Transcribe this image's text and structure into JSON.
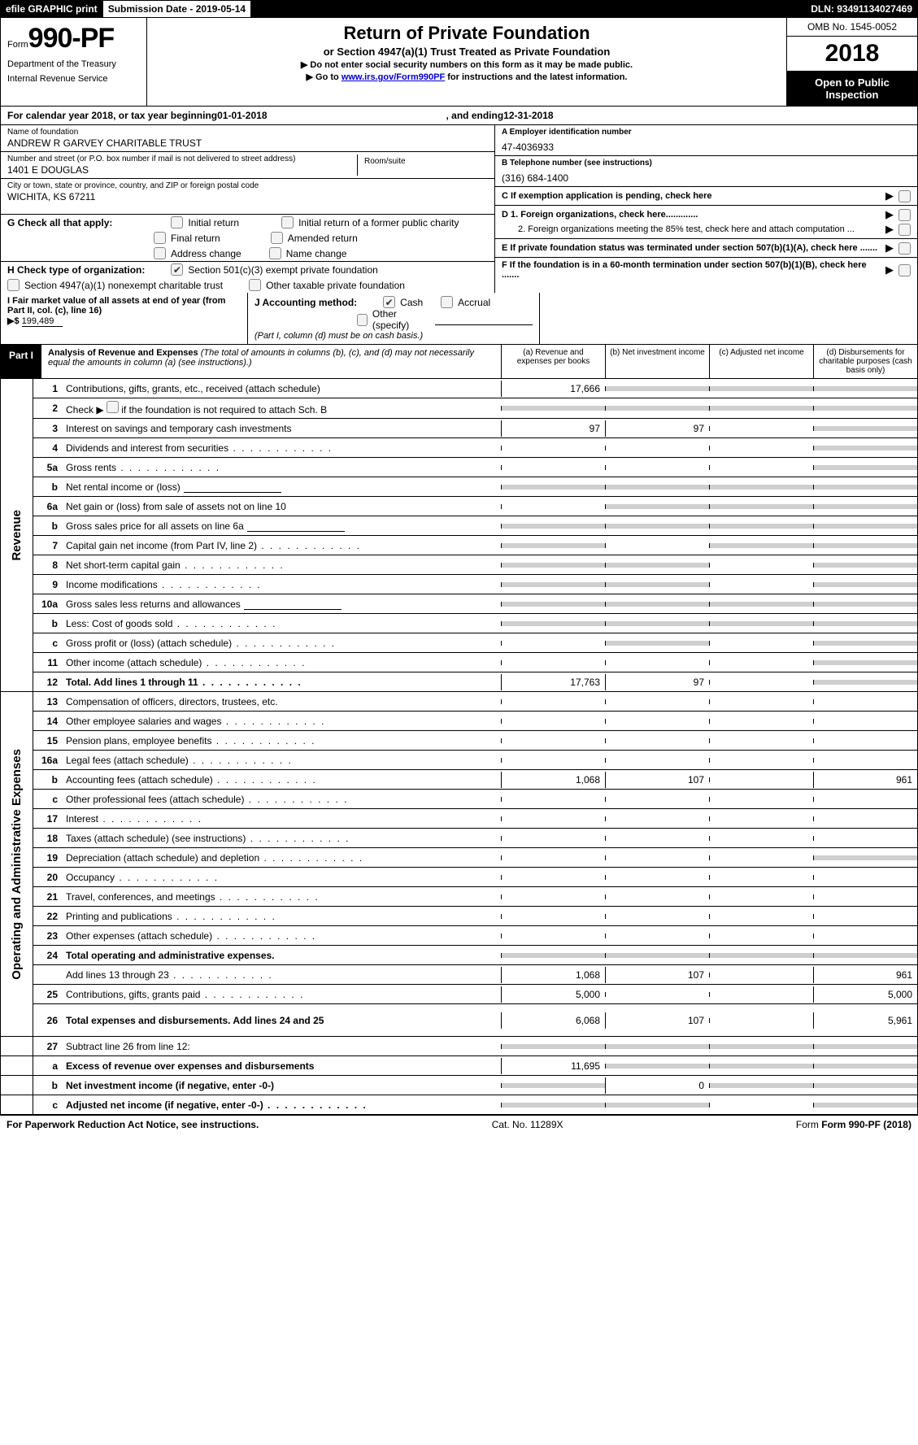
{
  "topbar": {
    "efile": "efile GRAPHIC print",
    "subdate_label": "Submission Date - ",
    "subdate": "2019-05-14",
    "dln_label": "DLN: ",
    "dln": "93491134027469"
  },
  "header": {
    "form_word": "Form",
    "form_no": "990-PF",
    "dept1": "Department of the Treasury",
    "dept2": "Internal Revenue Service",
    "title": "Return of Private Foundation",
    "subtitle": "or Section 4947(a)(1) Trust Treated as Private Foundation",
    "instr1": "▶ Do not enter social security numbers on this form as it may be made public.",
    "instr2_pre": "▶ Go to ",
    "instr2_link": "www.irs.gov/Form990PF",
    "instr2_post": " for instructions and the latest information.",
    "omb": "OMB No. 1545-0052",
    "year": "2018",
    "open1": "Open to Public",
    "open2": "Inspection"
  },
  "calrow": {
    "pre": "For calendar year 2018, or tax year beginning ",
    "begin": "01-01-2018",
    "mid": ", and ending ",
    "end": "12-31-2018"
  },
  "id": {
    "name_lab": "Name of foundation",
    "name": "ANDREW R GARVEY CHARITABLE TRUST",
    "addr_lab": "Number and street (or P.O. box number if mail is not delivered to street address)",
    "addr": "1401 E DOUGLAS",
    "room_lab": "Room/suite",
    "city_lab": "City or town, state or province, country, and ZIP or foreign postal code",
    "city": "WICHITA, KS  67211",
    "ein_lab": "A Employer identification number",
    "ein": "47-4036933",
    "tel_lab": "B Telephone number (see instructions)",
    "tel": "(316) 684-1400",
    "c": "C  If exemption application is pending, check here",
    "d1": "D 1. Foreign organizations, check here.............",
    "d2": "2. Foreign organizations meeting the 85% test, check here and attach computation ...",
    "e": "E   If private foundation status was terminated under section 507(b)(1)(A), check here .......",
    "f": "F   If the foundation is in a 60-month termination under section 507(b)(1)(B), check here ......."
  },
  "g": {
    "lab": "G Check all that apply:",
    "o1": "Initial return",
    "o2": "Initial return of a former public charity",
    "o3": "Final return",
    "o4": "Amended return",
    "o5": "Address change",
    "o6": "Name change"
  },
  "h": {
    "lab": "H Check type of organization:",
    "o1": "Section 501(c)(3) exempt private foundation",
    "o2": "Section 4947(a)(1) nonexempt charitable trust",
    "o3": "Other taxable private foundation"
  },
  "i": {
    "lab": "I Fair market value of all assets at end of year (from Part II, col. (c), line 16)",
    "sym": "▶$",
    "val": "199,489"
  },
  "j": {
    "lab": "J Accounting method:",
    "o1": "Cash",
    "o2": "Accrual",
    "o3": "Other (specify)",
    "note": "(Part I, column (d) must be on cash basis.)"
  },
  "part1": {
    "tag": "Part I",
    "title": "Analysis of Revenue and Expenses",
    "note": " (The total of amounts in columns (b), (c), and (d) may not necessarily equal the amounts in column (a) (see instructions).)",
    "ca": "(a)     Revenue and expenses per books",
    "cb": "(b)     Net investment income",
    "cc": "(c)     Adjusted net income",
    "cd": "(d)     Disbursements for charitable purposes (cash basis only)"
  },
  "sections": {
    "rev": "Revenue",
    "exp": "Operating and Administrative Expenses"
  },
  "rows": {
    "r1": {
      "n": "1",
      "t": "Contributions, gifts, grants, etc., received (attach schedule)",
      "a": "17,666"
    },
    "r2": {
      "n": "2",
      "t": "Check ▶ ",
      "t2": " if the foundation is not required to attach Sch. B"
    },
    "r3": {
      "n": "3",
      "t": "Interest on savings and temporary cash investments",
      "a": "97",
      "b": "97"
    },
    "r4": {
      "n": "4",
      "t": "Dividends and interest from securities"
    },
    "r5a": {
      "n": "5a",
      "t": "Gross rents"
    },
    "r5b": {
      "n": "b",
      "t": "Net rental income or (loss)"
    },
    "r6a": {
      "n": "6a",
      "t": "Net gain or (loss) from sale of assets not on line 10"
    },
    "r6b": {
      "n": "b",
      "t": "Gross sales price for all assets on line 6a"
    },
    "r7": {
      "n": "7",
      "t": "Capital gain net income (from Part IV, line 2)"
    },
    "r8": {
      "n": "8",
      "t": "Net short-term capital gain"
    },
    "r9": {
      "n": "9",
      "t": "Income modifications"
    },
    "r10a": {
      "n": "10a",
      "t": "Gross sales less returns and allowances"
    },
    "r10b": {
      "n": "b",
      "t": "Less: Cost of goods sold"
    },
    "r10c": {
      "n": "c",
      "t": "Gross profit or (loss) (attach schedule)"
    },
    "r11": {
      "n": "11",
      "t": "Other income (attach schedule)"
    },
    "r12": {
      "n": "12",
      "t": "Total. Add lines 1 through 11",
      "a": "17,763",
      "b": "97",
      "bold": true
    },
    "r13": {
      "n": "13",
      "t": "Compensation of officers, directors, trustees, etc."
    },
    "r14": {
      "n": "14",
      "t": "Other employee salaries and wages"
    },
    "r15": {
      "n": "15",
      "t": "Pension plans, employee benefits"
    },
    "r16a": {
      "n": "16a",
      "t": "Legal fees (attach schedule)"
    },
    "r16b": {
      "n": "b",
      "t": "Accounting fees (attach schedule)",
      "a": "1,068",
      "b": "107",
      "d": "961"
    },
    "r16c": {
      "n": "c",
      "t": "Other professional fees (attach schedule)"
    },
    "r17": {
      "n": "17",
      "t": "Interest"
    },
    "r18": {
      "n": "18",
      "t": "Taxes (attach schedule) (see instructions)"
    },
    "r19": {
      "n": "19",
      "t": "Depreciation (attach schedule) and depletion"
    },
    "r20": {
      "n": "20",
      "t": "Occupancy"
    },
    "r21": {
      "n": "21",
      "t": "Travel, conferences, and meetings"
    },
    "r22": {
      "n": "22",
      "t": "Printing and publications"
    },
    "r23": {
      "n": "23",
      "t": "Other expenses (attach schedule)"
    },
    "r24": {
      "n": "24",
      "t": "Total operating and administrative expenses.",
      "bold": true
    },
    "r24b": {
      "n": "",
      "t": "Add lines 13 through 23",
      "a": "1,068",
      "b": "107",
      "d": "961"
    },
    "r25": {
      "n": "25",
      "t": "Contributions, gifts, grants paid",
      "a": "5,000",
      "d": "5,000"
    },
    "r26": {
      "n": "26",
      "t": "Total expenses and disbursements. Add lines 24 and 25",
      "a": "6,068",
      "b": "107",
      "d": "5,961",
      "bold": true
    },
    "r27": {
      "n": "27",
      "t": "Subtract line 26 from line 12:"
    },
    "r27a": {
      "n": "a",
      "t": "Excess of revenue over expenses and disbursements",
      "a": "11,695",
      "bold": true
    },
    "r27b": {
      "n": "b",
      "t": "Net investment income (if negative, enter -0-)",
      "b": "0",
      "bold": true
    },
    "r27c": {
      "n": "c",
      "t": "Adjusted net income (if negative, enter -0-)",
      "bold": true
    }
  },
  "footer": {
    "l": "For Paperwork Reduction Act Notice, see instructions.",
    "c": "Cat. No. 11289X",
    "r": "Form 990-PF (2018)"
  }
}
